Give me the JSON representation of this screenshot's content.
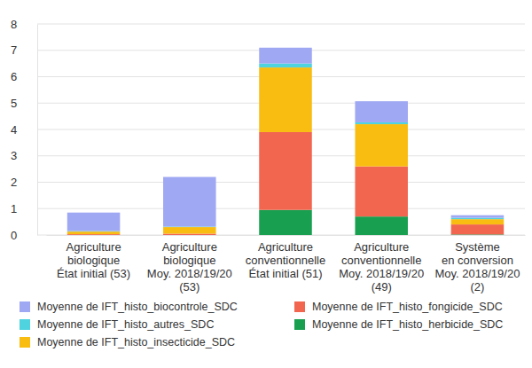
{
  "chart_data": {
    "type": "bar",
    "stacked": true,
    "grid": true,
    "legend": "bottom",
    "categories": [
      "Agriculture\nbiologique\nÉtat initial (53)",
      "Agriculture\nbiologique\nMoy. 2018/19/20\n(53)",
      "Agriculture\nconventionnelle\nÉtat initial (51)",
      "Agriculture\nconventionnelle\nMoy. 2018/19/20\n(49)",
      "Système\nen conversion\nMoy. 2018/19/20\n(2)"
    ],
    "ylim": [
      0,
      8
    ],
    "yticks": [
      0,
      1,
      2,
      3,
      4,
      5,
      6,
      7,
      8
    ],
    "series": [
      {
        "name": "Moyenne de IFT_histo_biocontrole_SDC",
        "color": "#9fa8f3",
        "values": [
          0.7,
          1.88,
          0.6,
          0.8,
          0.1
        ]
      },
      {
        "name": "Moyenne de IFT_histo_fongicide_SDC",
        "color": "#f26650",
        "values": [
          0.03,
          0.05,
          2.95,
          1.9,
          0.38
        ]
      },
      {
        "name": "Moyenne de IFT_histo_autres_SDC",
        "color": "#4fd3df",
        "values": [
          0.02,
          0.02,
          0.15,
          0.07,
          0.05
        ]
      },
      {
        "name": "Moyenne de IFT_histo_herbicide_SDC",
        "color": "#18a050",
        "values": [
          0,
          0,
          0.95,
          0.7,
          0.02
        ]
      },
      {
        "name": "Moyenne de IFT_histo_insecticide_SDC",
        "color": "#f9bd12",
        "values": [
          0.1,
          0.25,
          2.45,
          1.6,
          0.2
        ]
      }
    ]
  }
}
